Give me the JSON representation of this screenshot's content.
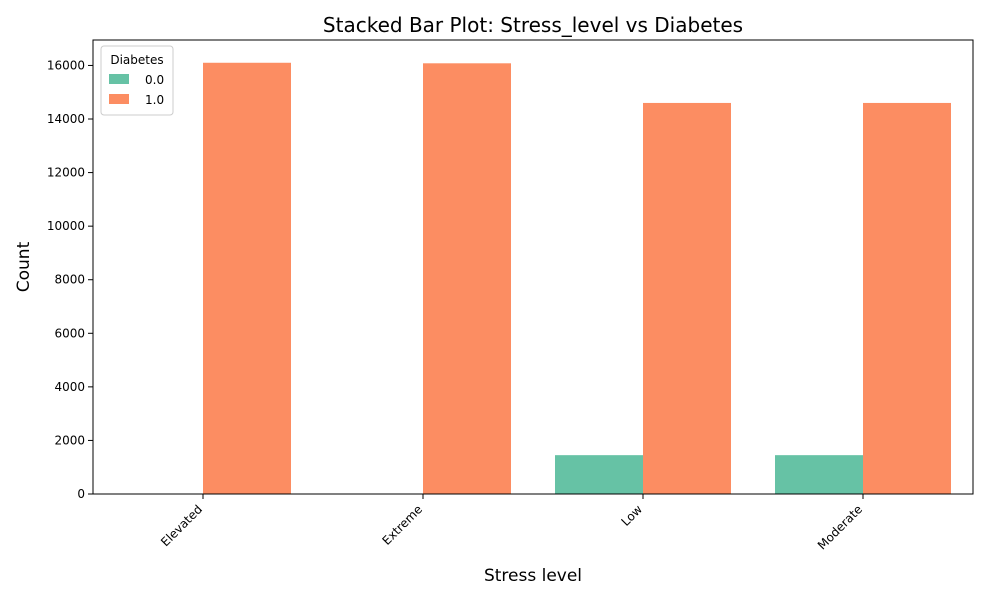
{
  "chart_data": {
    "type": "bar",
    "title": "Stacked Bar Plot: Stress_level vs Diabetes",
    "xlabel": "Stress level",
    "ylabel": "Count",
    "categories": [
      "Elevated",
      "Extreme",
      "Low",
      "Moderate"
    ],
    "series": [
      {
        "name": "0.0",
        "values": [
          0,
          0,
          1450,
          1450
        ],
        "color": "#66c2a5"
      },
      {
        "name": "1.0",
        "values": [
          16100,
          16080,
          14600,
          14600
        ],
        "color": "#fc8d62"
      }
    ],
    "ylim": [
      0,
      16950
    ],
    "yticks": [
      0,
      2000,
      4000,
      6000,
      8000,
      10000,
      12000,
      14000,
      16000
    ],
    "legend": {
      "title": "Diabetes",
      "position": "top-left"
    },
    "grid": false
  }
}
